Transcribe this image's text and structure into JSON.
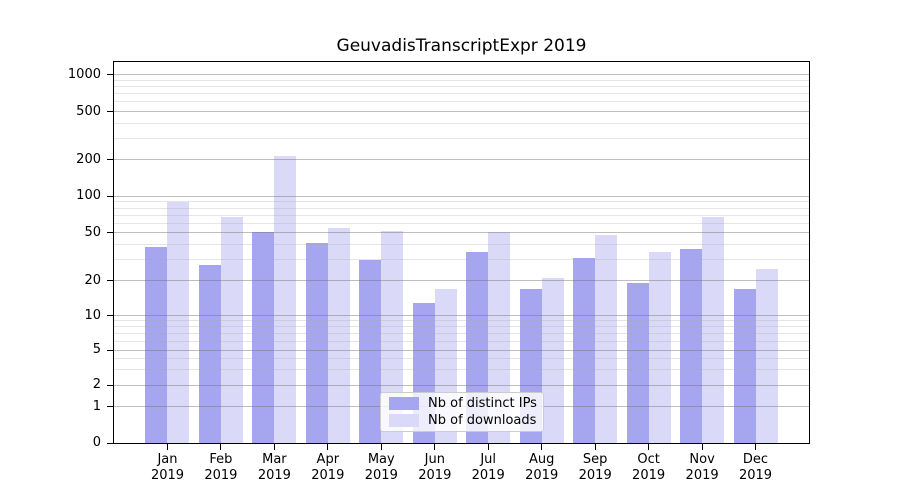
{
  "title": "GeuvadisTranscriptExpr 2019",
  "legend": {
    "items": [
      "Nb of distinct IPs",
      "Nb of downloads"
    ]
  },
  "chart_data": {
    "type": "bar",
    "title": "GeuvadisTranscriptExpr 2019",
    "categories": [
      "Jan 2019",
      "Feb 2019",
      "Mar 2019",
      "Apr 2019",
      "May 2019",
      "Jun 2019",
      "Jul 2019",
      "Aug 2019",
      "Sep 2019",
      "Oct 2019",
      "Nov 2019",
      "Dec 2019"
    ],
    "x_months": [
      "Jan",
      "Feb",
      "Mar",
      "Apr",
      "May",
      "Jun",
      "Jul",
      "Aug",
      "Sep",
      "Oct",
      "Nov",
      "Dec"
    ],
    "x_year": "2019",
    "series": [
      {
        "name": "Nb of distinct IPs",
        "color": "#a5a5f0",
        "values": [
          38,
          27,
          51,
          41,
          30,
          13,
          35,
          17,
          31,
          19,
          37,
          17
        ]
      },
      {
        "name": "Nb of downloads",
        "color": "#dadaf8",
        "values": [
          90,
          67,
          215,
          55,
          52,
          17,
          51,
          21,
          48,
          35,
          67,
          25
        ]
      }
    ],
    "yscale": "symlog",
    "y_major_ticks": [
      0,
      1,
      2,
      5,
      10,
      20,
      50,
      100,
      200,
      500,
      1000
    ],
    "y_minor_ticks": [
      3,
      4,
      6,
      7,
      8,
      9,
      30,
      40,
      60,
      70,
      80,
      90,
      300,
      400,
      600,
      700,
      800,
      900
    ],
    "ylim": [
      0,
      1400
    ],
    "xlabel": "",
    "ylabel": "",
    "grid": true,
    "legend_position": "lower center inside plot"
  }
}
